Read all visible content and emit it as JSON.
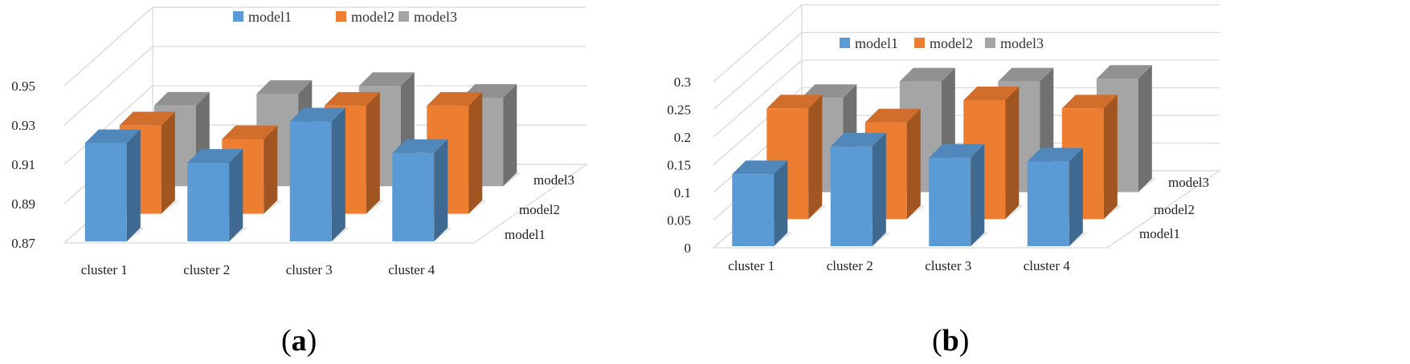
{
  "colors": {
    "model1": "#5b9bd5",
    "model2": "#ed7d31",
    "model3": "#a5a5a5"
  },
  "chart_data": [
    {
      "type": "bar",
      "label": "a",
      "categories": [
        "cluster 1",
        "cluster 2",
        "cluster 3",
        "cluster 4"
      ],
      "depth_labels": [
        "model1",
        "model2",
        "model3"
      ],
      "legend": [
        "model1",
        "model2",
        "model3"
      ],
      "legend_placement": "top-center",
      "y_ticks": [
        "0.87",
        "0.89",
        "0.91",
        "0.93",
        "0.95"
      ],
      "ylim": [
        0.87,
        0.95
      ],
      "grid": true,
      "series": [
        {
          "name": "model1",
          "values": [
            0.92,
            0.91,
            0.931,
            0.915
          ]
        },
        {
          "name": "model2",
          "values": [
            0.915,
            0.908,
            0.925,
            0.925
          ]
        },
        {
          "name": "model3",
          "values": [
            0.911,
            0.917,
            0.921,
            0.915
          ]
        }
      ]
    },
    {
      "type": "bar",
      "label": "b",
      "categories": [
        "cluster 1",
        "cluster 2",
        "cluster 3",
        "cluster 4"
      ],
      "depth_labels": [
        "model1",
        "model2",
        "model3"
      ],
      "legend": [
        "model1",
        "model2",
        "model3"
      ],
      "legend_placement": "top-center",
      "y_ticks": [
        "0",
        "0.05",
        "0.1",
        "0.15",
        "0.2",
        "0.25",
        "0.3"
      ],
      "ylim": [
        0,
        0.3
      ],
      "grid": true,
      "series": [
        {
          "name": "model1",
          "values": [
            0.13,
            0.18,
            0.16,
            0.153
          ]
        },
        {
          "name": "model2",
          "values": [
            0.2,
            0.175,
            0.215,
            0.2
          ]
        },
        {
          "name": "model3",
          "values": [
            0.17,
            0.2,
            0.2,
            0.205
          ]
        }
      ]
    }
  ]
}
